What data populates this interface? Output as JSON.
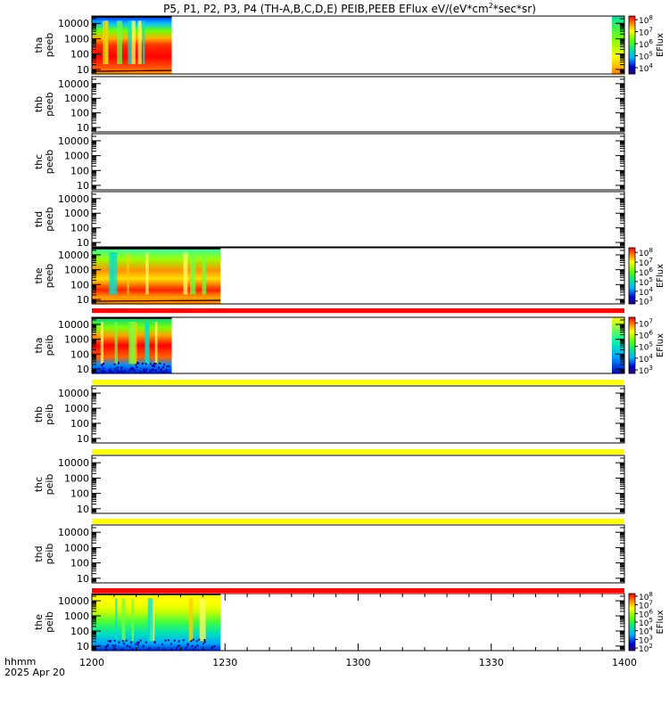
{
  "chart_data": {
    "type": "heatmap",
    "title": {
      "pre": "P5, P1, P2, P3, P4 (TH-A,B,C,D,E) PEIB,PEEB EFlux eV/(eV*cm",
      "sup": "2",
      "post": "*sec*sr)"
    },
    "x_axis": {
      "title": "hhmm",
      "date": "2025 Apr 20",
      "range": [
        "12:00",
        "14:00"
      ],
      "tick_labels": [
        "1200",
        "1230",
        "1300",
        "1330",
        "1400"
      ]
    },
    "y_scale": "log",
    "y_range": [
      5,
      30000
    ],
    "y_tick_labels": [
      "10",
      "100",
      "1000",
      "10000"
    ],
    "colorbar_label": "EFlux",
    "panels": [
      {
        "probe": "tha",
        "instrument": "peeb",
        "has_data": true,
        "data_end": "12:18",
        "colorbar": {
          "range": [
            3000,
            200000000
          ],
          "ticks": [
            {
              "base": "10",
              "exp": "4"
            },
            {
              "base": "10",
              "exp": "5"
            },
            {
              "base": "10",
              "exp": "6"
            },
            {
              "base": "10",
              "exp": "7"
            },
            {
              "base": "10",
              "exp": "8"
            }
          ]
        },
        "flag_bar": null
      },
      {
        "probe": "thb",
        "instrument": "peeb",
        "has_data": false,
        "flag_bar": null
      },
      {
        "probe": "thc",
        "instrument": "peeb",
        "has_data": false,
        "flag_bar": null
      },
      {
        "probe": "thd",
        "instrument": "peeb",
        "has_data": false,
        "flag_bar": null
      },
      {
        "probe": "the",
        "instrument": "peeb",
        "has_data": true,
        "data_end": "12:29",
        "colorbar": {
          "range": [
            500,
            300000000
          ],
          "ticks": [
            {
              "base": "10",
              "exp": "3"
            },
            {
              "base": "10",
              "exp": "4"
            },
            {
              "base": "10",
              "exp": "5"
            },
            {
              "base": "10",
              "exp": "6"
            },
            {
              "base": "10",
              "exp": "7"
            },
            {
              "base": "10",
              "exp": "8"
            }
          ]
        },
        "flag_bar": "#ff0000"
      },
      {
        "probe": "tha",
        "instrument": "peib",
        "has_data": true,
        "data_end": "12:18",
        "colorbar": {
          "range": [
            500,
            30000000
          ],
          "ticks": [
            {
              "base": "10",
              "exp": "3"
            },
            {
              "base": "10",
              "exp": "4"
            },
            {
              "base": "10",
              "exp": "5"
            },
            {
              "base": "10",
              "exp": "6"
            },
            {
              "base": "10",
              "exp": "7"
            }
          ]
        },
        "flag_bar": "#ffff00"
      },
      {
        "probe": "thb",
        "instrument": "peib",
        "has_data": false,
        "flag_bar": "#ffff00"
      },
      {
        "probe": "thc",
        "instrument": "peib",
        "has_data": false,
        "flag_bar": "#ffff00"
      },
      {
        "probe": "thd",
        "instrument": "peib",
        "has_data": false,
        "flag_bar": "#ff0000"
      },
      {
        "probe": "the",
        "instrument": "peib",
        "has_data": true,
        "data_end": "12:29",
        "colorbar": {
          "range": [
            50,
            200000000
          ],
          "ticks": [
            {
              "base": "10",
              "exp": "2"
            },
            {
              "base": "10",
              "exp": "3"
            },
            {
              "base": "10",
              "exp": "4"
            },
            {
              "base": "10",
              "exp": "5"
            },
            {
              "base": "10",
              "exp": "6"
            },
            {
              "base": "10",
              "exp": "7"
            },
            {
              "base": "10",
              "exp": "8"
            }
          ]
        },
        "flag_bar": null
      }
    ]
  }
}
